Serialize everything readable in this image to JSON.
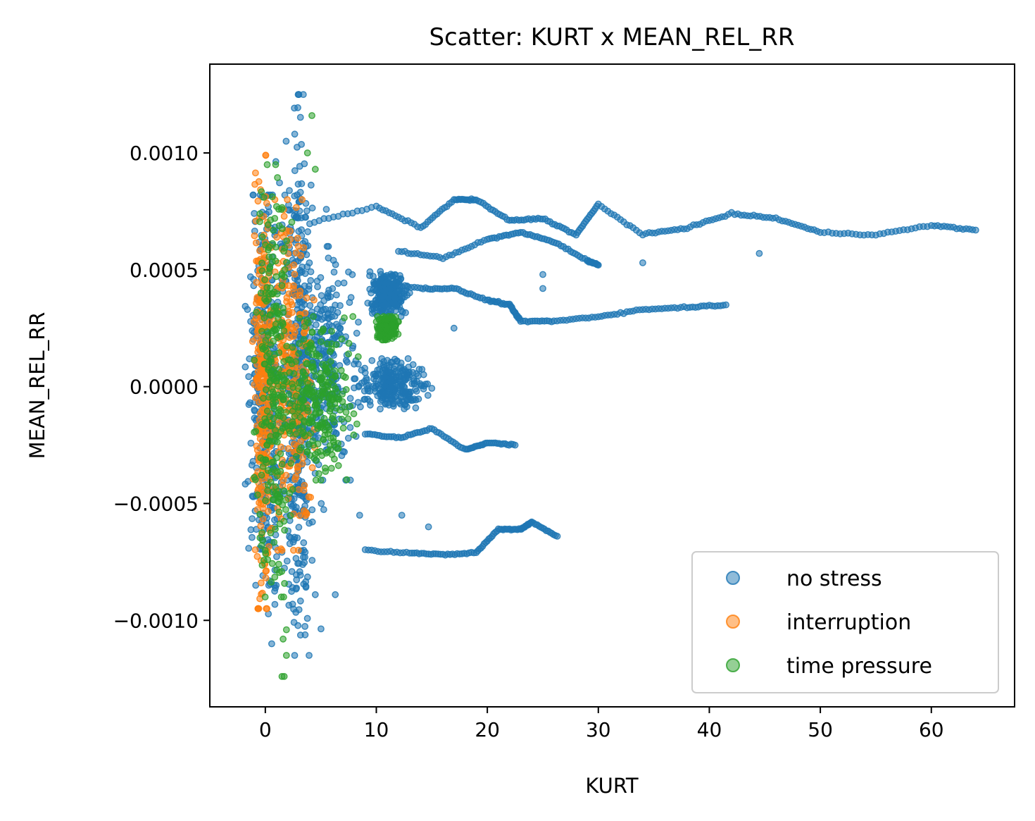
{
  "chart_data": {
    "type": "scatter",
    "title": "Scatter: KURT x MEAN_REL_RR",
    "xlabel": "KURT",
    "ylabel": "MEAN_REL_RR",
    "xlim": [
      -5,
      67.5
    ],
    "ylim": [
      -0.00137,
      0.00138
    ],
    "x_ticks": [
      0,
      10,
      20,
      30,
      40,
      50,
      60
    ],
    "x_tick_labels": [
      "0",
      "10",
      "20",
      "30",
      "40",
      "50",
      "60"
    ],
    "y_ticks": [
      0.001,
      0.0005,
      0,
      -0.0005,
      -0.001
    ],
    "y_tick_labels": [
      "0.0010",
      "0.0005",
      "0.0000",
      "−0.0005",
      "−0.0010"
    ],
    "grid": false,
    "legend_position": "lower-right",
    "series": [
      {
        "name": "no stress",
        "color": "#1f77b4",
        "clusters": [
          {
            "x": [
              -1.8,
              1.6
            ],
            "y": [
              -0.00085,
              0.00082
            ]
          },
          {
            "x": [
              -1.5,
              5.5
            ],
            "y": [
              -0.0011,
              0.00105
            ]
          },
          {
            "x": [
              2,
              9
            ],
            "y": [
              -0.0004,
              0.0006
            ]
          },
          {
            "x": [
              8,
              15
            ],
            "y": [
              -0.0001,
              0.00012
            ]
          },
          {
            "x": [
              9,
              13
            ],
            "y": [
              0.0003,
              0.0005
            ]
          },
          {
            "x": [
              2,
              4
            ],
            "y": [
              -0.00115,
              0.00125
            ]
          }
        ],
        "trails": [
          {
            "x": [
              4,
              10,
              14,
              17,
              19,
              22,
              25,
              28,
              30,
              34,
              38,
              42,
              46,
              50,
              55,
              60,
              64
            ],
            "y": [
              0.0007,
              0.00077,
              0.00068,
              0.0008,
              0.0008,
              0.00071,
              0.00072,
              0.00065,
              0.00078,
              0.00065,
              0.00068,
              0.00074,
              0.00072,
              0.00066,
              0.00065,
              0.00069,
              0.00067
            ]
          },
          {
            "x": [
              12,
              16,
              20,
              23,
              26,
              29,
              30
            ],
            "y": [
              0.00058,
              0.00055,
              0.00063,
              0.00066,
              0.00062,
              0.00054,
              0.00052
            ]
          },
          {
            "x": [
              10,
              14,
              17,
              20,
              22,
              23,
              26,
              30,
              34,
              38,
              41.5
            ],
            "y": [
              0.00045,
              0.00042,
              0.00042,
              0.00037,
              0.00035,
              0.00028,
              0.00028,
              0.0003,
              0.00033,
              0.00034,
              0.00035
            ]
          },
          {
            "x": [
              9,
              13,
              16,
              19,
              21,
              23,
              24,
              26.3
            ],
            "y": [
              -0.0007,
              -0.00071,
              -0.00072,
              -0.00071,
              -0.00061,
              -0.00061,
              -0.00058,
              -0.00064
            ]
          },
          {
            "x": [
              9,
              12,
              15,
              18,
              20,
              22.5
            ],
            "y": [
              -0.0002,
              -0.00022,
              -0.00018,
              -0.00027,
              -0.00024,
              -0.00025
            ]
          }
        ],
        "points": [
          {
            "x": 44.5,
            "y": 0.00057
          },
          {
            "x": 34,
            "y": 0.00053
          },
          {
            "x": 25,
            "y": 0.00048
          },
          {
            "x": 25,
            "y": 0.00042
          },
          {
            "x": 17,
            "y": 0.00025
          },
          {
            "x": 8.5,
            "y": -0.00055
          },
          {
            "x": 12.3,
            "y": -0.00055
          },
          {
            "x": 14.7,
            "y": -0.0006
          },
          {
            "x": 6.3,
            "y": -0.00089
          },
          {
            "x": 4.5,
            "y": -0.00089
          }
        ]
      },
      {
        "name": "interruption",
        "color": "#ff7f0e",
        "clusters": [
          {
            "x": [
              -1.2,
              0.8
            ],
            "y": [
              -0.00095,
              0.00099
            ]
          },
          {
            "x": [
              0,
              4.5
            ],
            "y": [
              -0.0007,
              0.0008
            ]
          }
        ],
        "trails": [],
        "points": []
      },
      {
        "name": "time pressure",
        "color": "#2ca02c",
        "clusters": [
          {
            "x": [
              -1,
              2.5
            ],
            "y": [
              -0.0009,
              0.00095
            ]
          },
          {
            "x": [
              1,
              8.5
            ],
            "y": [
              -0.0004,
              0.0003
            ]
          },
          {
            "x": [
              10,
              12
            ],
            "y": [
              0.0002,
              0.0003
            ]
          }
        ],
        "trails": [],
        "points": [
          {
            "x": 4.2,
            "y": 0.00116
          },
          {
            "x": 3.8,
            "y": 0.001
          },
          {
            "x": 4.5,
            "y": 0.00093
          },
          {
            "x": 1.6,
            "y": -0.00108
          },
          {
            "x": 1.9,
            "y": -0.00115
          },
          {
            "x": 1.5,
            "y": -0.00124
          },
          {
            "x": 1.7,
            "y": -0.00124
          },
          {
            "x": 1.9,
            "y": -0.00104
          }
        ]
      }
    ]
  }
}
